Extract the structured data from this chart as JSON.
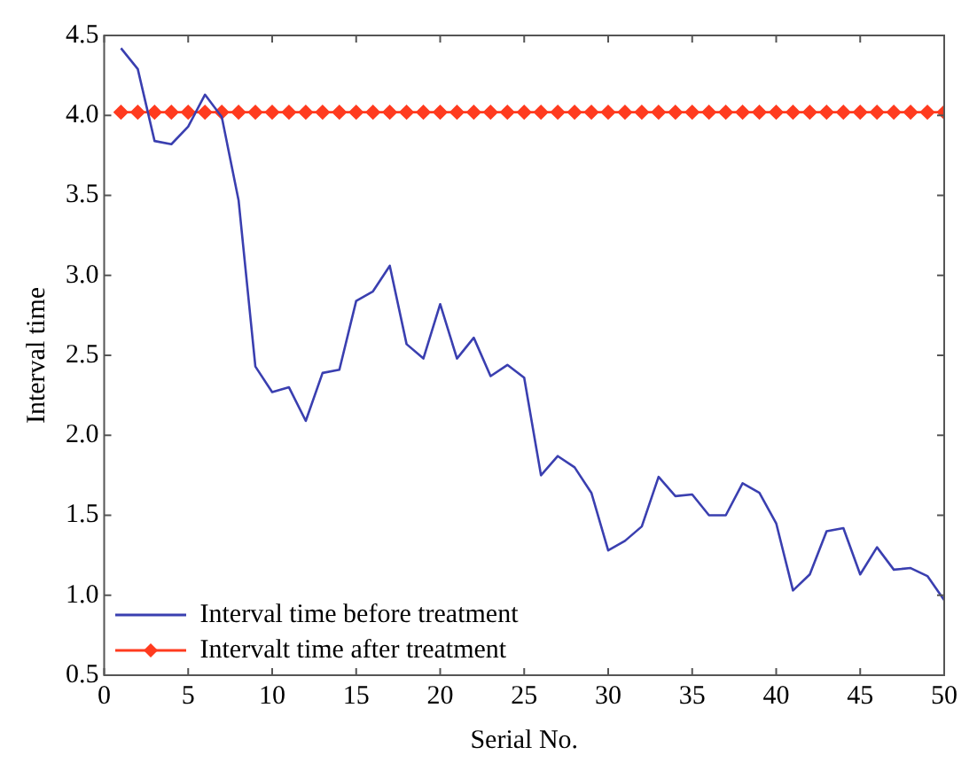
{
  "chart_data": {
    "type": "line",
    "xlabel": "Serial No.",
    "ylabel": "Interval time",
    "x": [
      1,
      2,
      3,
      4,
      5,
      6,
      7,
      8,
      9,
      10,
      11,
      12,
      13,
      14,
      15,
      16,
      17,
      18,
      19,
      20,
      21,
      22,
      23,
      24,
      25,
      26,
      27,
      28,
      29,
      30,
      31,
      32,
      33,
      34,
      35,
      36,
      37,
      38,
      39,
      40,
      41,
      42,
      43,
      44,
      45,
      46,
      47,
      48,
      49,
      50
    ],
    "series": [
      {
        "name": "Interval time before treatment",
        "color": "#3a3fb0",
        "marker": "none",
        "values": [
          4.42,
          4.29,
          3.84,
          3.82,
          3.93,
          4.13,
          3.99,
          3.47,
          2.43,
          2.27,
          2.3,
          2.09,
          2.39,
          2.41,
          2.84,
          2.9,
          3.06,
          2.57,
          2.48,
          2.82,
          2.48,
          2.61,
          2.37,
          2.44,
          2.36,
          1.75,
          1.87,
          1.8,
          1.64,
          1.28,
          1.34,
          1.43,
          1.74,
          1.62,
          1.63,
          1.5,
          1.5,
          1.7,
          1.64,
          1.45,
          1.03,
          1.13,
          1.4,
          1.42,
          1.13,
          1.3,
          1.16,
          1.17,
          1.12,
          0.97
        ]
      },
      {
        "name": "Intervalt time after treatment",
        "color": "#ff3b1f",
        "marker": "diamond",
        "values": [
          4.02,
          4.02,
          4.02,
          4.02,
          4.02,
          4.02,
          4.02,
          4.02,
          4.02,
          4.02,
          4.02,
          4.02,
          4.02,
          4.02,
          4.02,
          4.02,
          4.02,
          4.02,
          4.02,
          4.02,
          4.02,
          4.02,
          4.02,
          4.02,
          4.02,
          4.02,
          4.02,
          4.02,
          4.02,
          4.02,
          4.02,
          4.02,
          4.02,
          4.02,
          4.02,
          4.02,
          4.02,
          4.02,
          4.02,
          4.02,
          4.02,
          4.02,
          4.02,
          4.02,
          4.02,
          4.02,
          4.02,
          4.02,
          4.02,
          4.02
        ]
      }
    ],
    "xlim": [
      0,
      50
    ],
    "xticks": [
      0,
      5,
      10,
      15,
      20,
      25,
      30,
      35,
      40,
      45,
      50
    ],
    "ylim": [
      0.5,
      4.5
    ],
    "yticks": [
      {
        "value": 0.5,
        "label": "0.5"
      },
      {
        "value": 1,
        "label": "1.0"
      },
      {
        "value": 1.5,
        "label": "1.5"
      },
      {
        "value": 2,
        "label": "2.0"
      },
      {
        "value": 2.5,
        "label": "2.5"
      },
      {
        "value": 3,
        "label": "3.0"
      },
      {
        "value": 3.5,
        "label": "3.5"
      },
      {
        "value": 4,
        "label": "4.0"
      },
      {
        "value": 4.5,
        "label": "4.5"
      }
    ],
    "grid": false,
    "legend": "bottom left",
    "line_style": "solid"
  }
}
